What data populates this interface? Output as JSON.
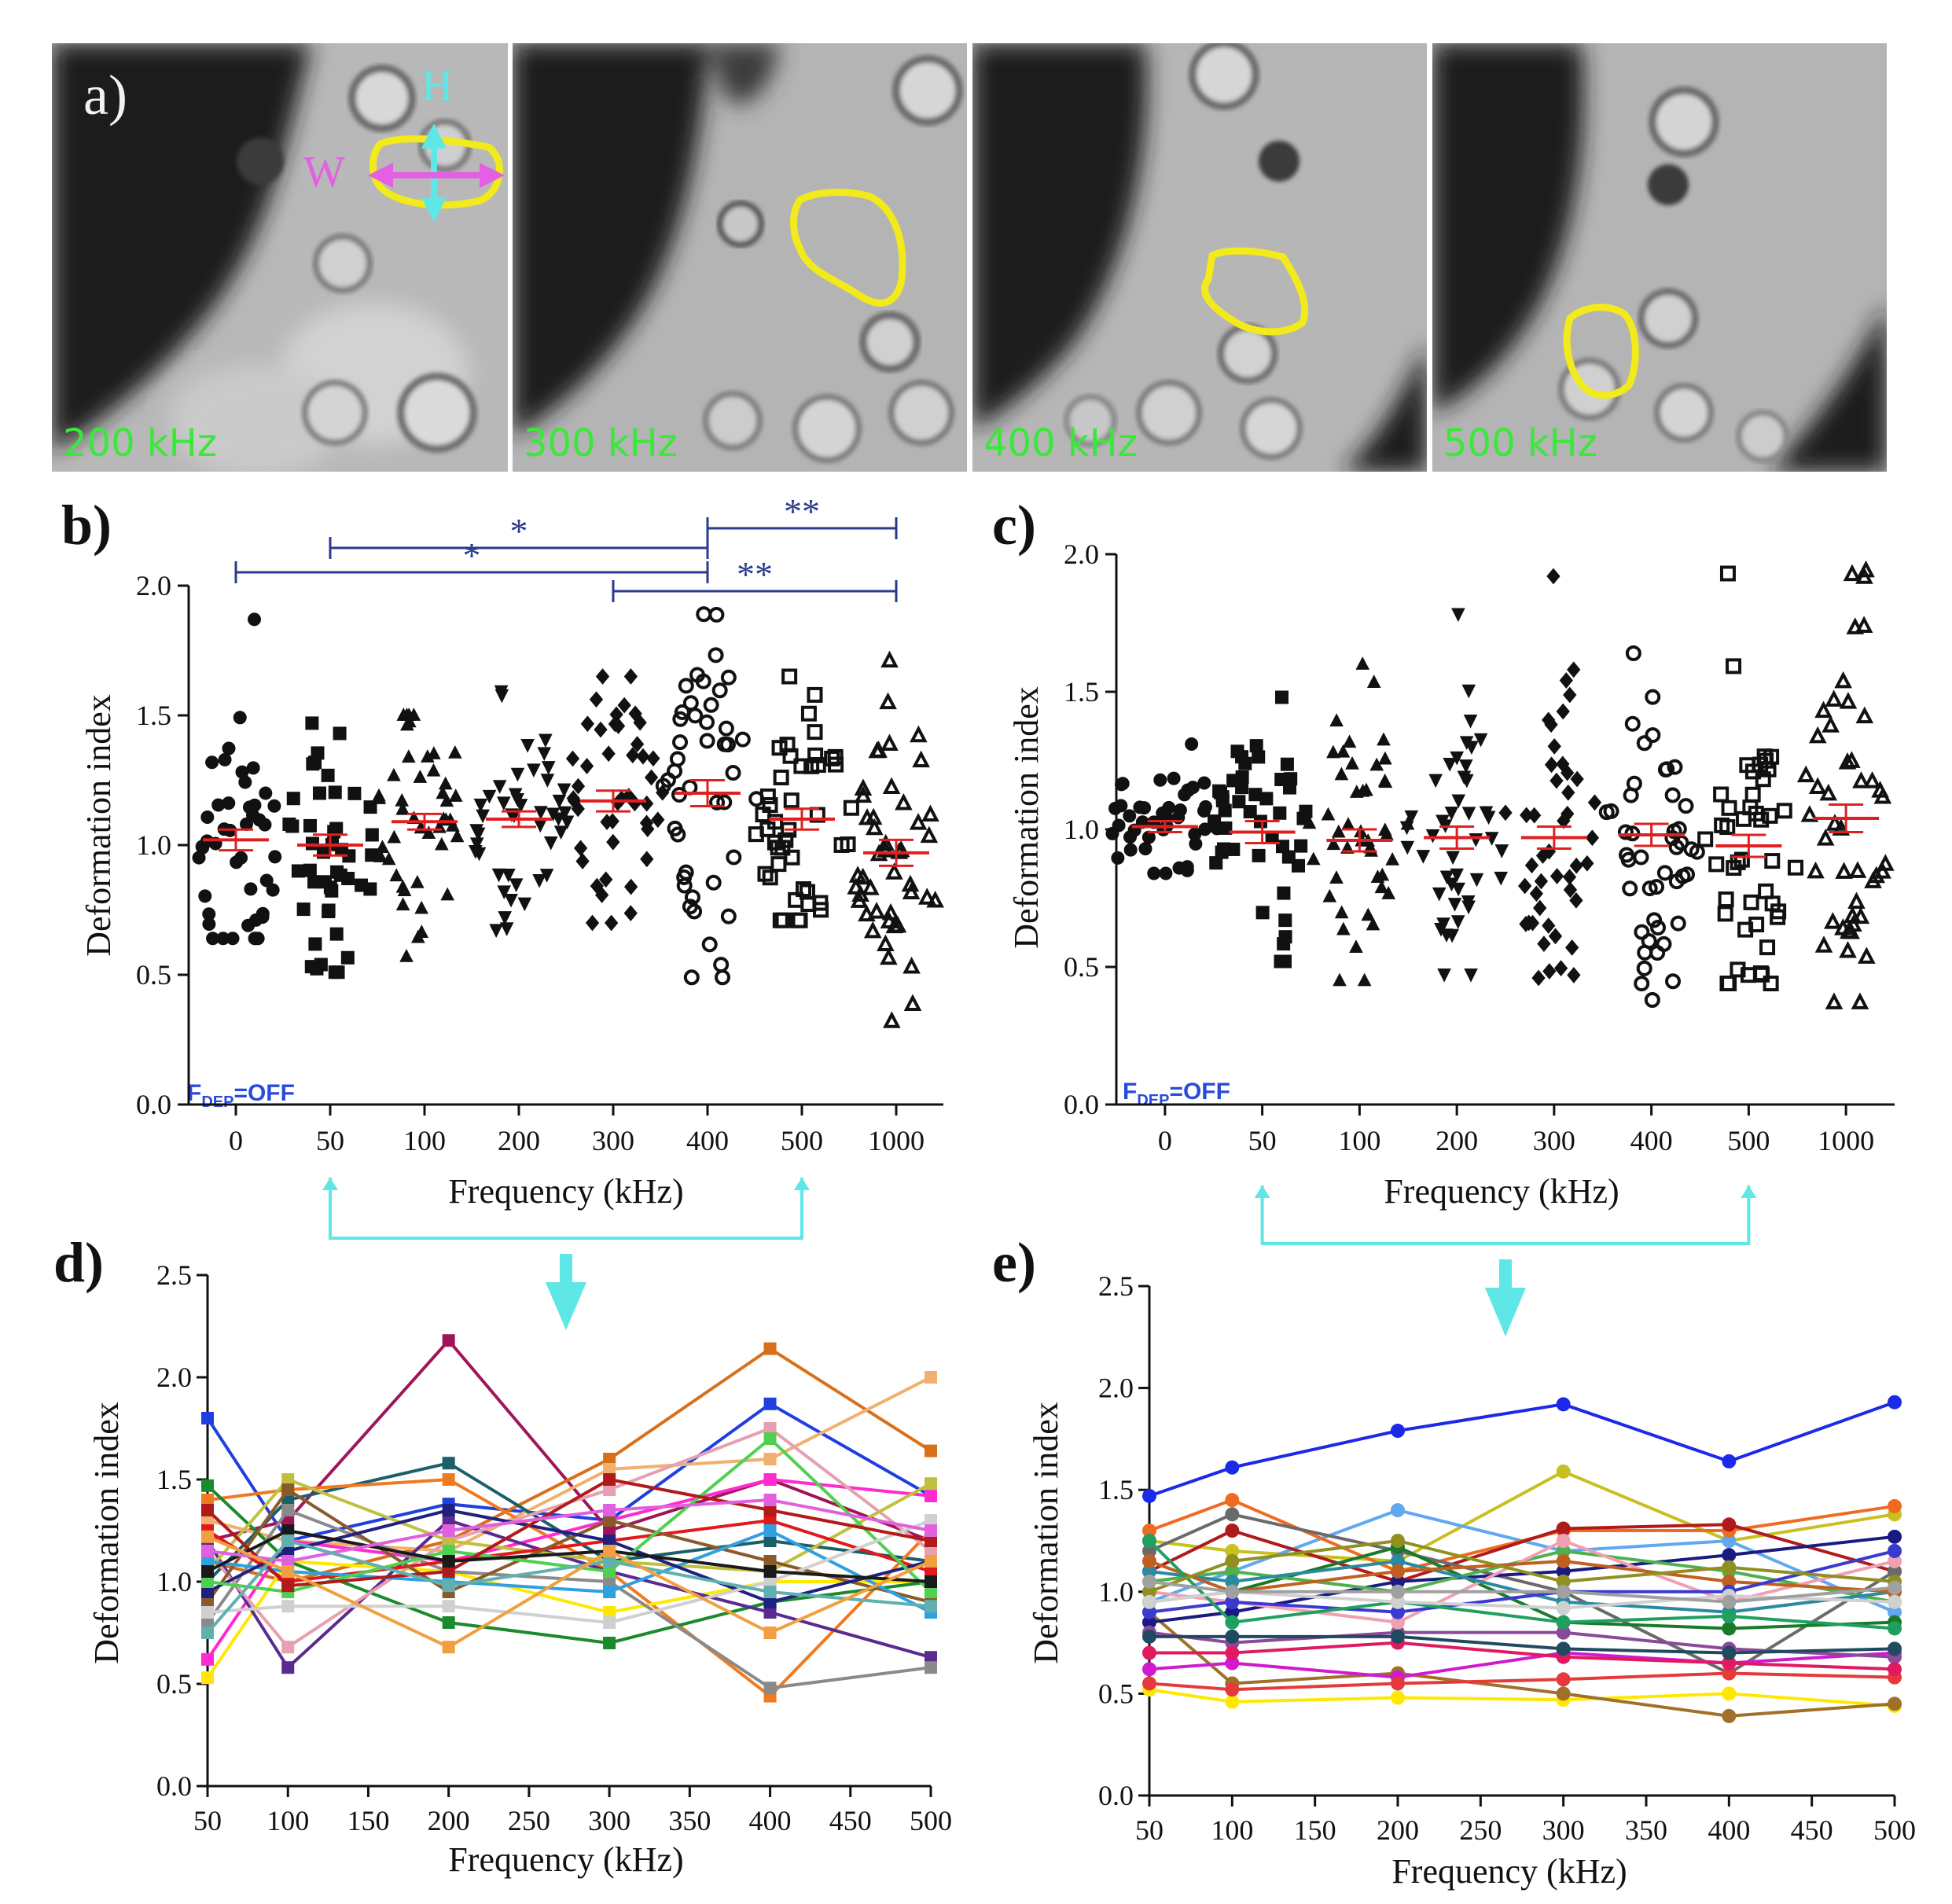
{
  "panel_a": {
    "letter": "a)",
    "labels": {
      "height": "H",
      "width": "W"
    },
    "images": [
      {
        "freq": "200 kHz"
      },
      {
        "freq": "300 kHz"
      },
      {
        "freq": "400 kHz"
      },
      {
        "freq": "500 kHz"
      }
    ],
    "colors": {
      "outline": "#f2ea1a",
      "height_arrow": "#5fe6e6",
      "width_arrow": "#e45fe4",
      "label": "#39e939"
    }
  },
  "chart_data": [
    {
      "id": "b",
      "panel": "b)",
      "type": "scatter",
      "categories": [
        "0",
        "50",
        "100",
        "200",
        "300",
        "400",
        "500",
        "1000"
      ],
      "xlabel": "Frequency (kHz)",
      "ylabel": "Deformation index",
      "ylim": [
        0,
        2.0
      ],
      "yticks": [
        "0.0",
        "0.5",
        "1.0",
        "1.5",
        "2.0"
      ],
      "markers": [
        "circle",
        "square",
        "triangle",
        "triangle-down",
        "diamond",
        "circle-open",
        "square-open",
        "triangle-open"
      ],
      "means": [
        1.02,
        1.0,
        1.09,
        1.1,
        1.17,
        1.2,
        1.1,
        0.97
      ],
      "sem": [
        0.04,
        0.04,
        0.03,
        0.03,
        0.04,
        0.05,
        0.04,
        0.05
      ],
      "ranges": [
        [
          0.64,
          1.87
        ],
        [
          0.51,
          1.47
        ],
        [
          0.57,
          1.5
        ],
        [
          0.67,
          1.59
        ],
        [
          0.7,
          1.65
        ],
        [
          0.49,
          1.89
        ],
        [
          0.71,
          1.65
        ],
        [
          0.32,
          1.71
        ]
      ],
      "n_points": 45,
      "annotation": "FDEP=OFF",
      "significance": [
        {
          "from": "0",
          "to": "400",
          "label": "*"
        },
        {
          "from": "50",
          "to": "400",
          "label": "*"
        },
        {
          "from": "300",
          "to": "1000",
          "label": "**"
        },
        {
          "from": "400",
          "to": "1000",
          "label": "**"
        }
      ]
    },
    {
      "id": "c",
      "panel": "c)",
      "type": "scatter",
      "categories": [
        "0",
        "50",
        "100",
        "200",
        "300",
        "400",
        "500",
        "1000"
      ],
      "xlabel": "Frequency (kHz)",
      "ylabel": "Deformation index",
      "ylim": [
        0,
        2.0
      ],
      "yticks": [
        "0.0",
        "0.5",
        "1.0",
        "1.5",
        "2.0"
      ],
      "markers": [
        "circle",
        "square",
        "triangle",
        "triangle-down",
        "diamond",
        "circle-open",
        "square-open",
        "triangle-open"
      ],
      "means": [
        1.01,
        0.99,
        0.96,
        0.97,
        0.97,
        0.98,
        0.94,
        1.04
      ],
      "sem": [
        0.02,
        0.04,
        0.04,
        0.04,
        0.04,
        0.04,
        0.04,
        0.05
      ],
      "ranges": [
        [
          0.84,
          1.31
        ],
        [
          0.52,
          1.48
        ],
        [
          0.45,
          1.6
        ],
        [
          0.47,
          1.78
        ],
        [
          0.46,
          1.92
        ],
        [
          0.38,
          1.64
        ],
        [
          0.44,
          1.93
        ],
        [
          0.37,
          1.94
        ]
      ],
      "n_points": 45,
      "annotation": "FDEP=OFF",
      "significance": []
    },
    {
      "id": "d",
      "panel": "d)",
      "type": "line",
      "x": [
        50,
        100,
        200,
        300,
        400,
        500
      ],
      "xticks": [
        "50",
        "100",
        "150",
        "200",
        "250",
        "300",
        "350",
        "400",
        "450",
        "500"
      ],
      "yticks": [
        "0.0",
        "0.5",
        "1.0",
        "1.5",
        "2.0",
        "2.5"
      ],
      "xlabel": "Frequency (kHz)",
      "ylabel": "Deformation index",
      "xlim": [
        50,
        500
      ],
      "ylim": [
        0,
        2.5
      ],
      "marker": "square",
      "series": [
        {
          "color": "#1f3fe0",
          "values": [
            1.8,
            1.2,
            1.38,
            1.3,
            1.87,
            1.42
          ]
        },
        {
          "color": "#a0155a",
          "values": [
            1.2,
            1.3,
            2.18,
            1.25,
            1.5,
            1.2
          ]
        },
        {
          "color": "#d8701a",
          "values": [
            1.1,
            1.0,
            1.2,
            1.6,
            2.14,
            1.64
          ]
        },
        {
          "color": "#f0b070",
          "values": [
            1.3,
            1.2,
            1.15,
            1.55,
            1.6,
            2.0
          ]
        },
        {
          "color": "#1a5f6a",
          "values": [
            1.0,
            1.4,
            1.58,
            1.1,
            1.2,
            1.1
          ]
        },
        {
          "color": "#f07a20",
          "values": [
            1.4,
            1.45,
            1.5,
            1.05,
            0.44,
            1.25
          ]
        },
        {
          "color": "#ffe800",
          "values": [
            0.53,
            1.1,
            1.05,
            0.85,
            1.0,
            1.0
          ]
        },
        {
          "color": "#ff2ad0",
          "values": [
            0.62,
            1.2,
            1.1,
            1.3,
            1.5,
            1.42
          ]
        },
        {
          "color": "#1a8a2a",
          "values": [
            1.47,
            1.1,
            0.8,
            0.7,
            0.9,
            1.0
          ]
        },
        {
          "color": "#5a2a90",
          "values": [
            1.2,
            0.58,
            1.3,
            1.05,
            0.85,
            0.63
          ]
        },
        {
          "color": "#8a8a8a",
          "values": [
            0.8,
            1.35,
            1.05,
            1.0,
            0.48,
            0.58
          ]
        },
        {
          "color": "#e6a0b0",
          "values": [
            1.15,
            0.68,
            1.2,
            1.45,
            1.75,
            1.15
          ]
        },
        {
          "color": "#c0c040",
          "values": [
            1.05,
            1.5,
            1.2,
            1.1,
            1.05,
            1.48
          ]
        },
        {
          "color": "#e01a1a",
          "values": [
            1.25,
            1.0,
            1.1,
            1.2,
            1.3,
            1.05
          ]
        },
        {
          "color": "#8a5a2a",
          "values": [
            0.9,
            1.45,
            0.95,
            1.3,
            1.1,
            0.9
          ]
        },
        {
          "color": "#30a0e0",
          "values": [
            1.1,
            1.05,
            1.0,
            0.95,
            1.25,
            0.85
          ]
        },
        {
          "color": "#202080",
          "values": [
            0.95,
            1.15,
            1.35,
            1.2,
            0.9,
            1.1
          ]
        },
        {
          "color": "#50d050",
          "values": [
            1.0,
            0.95,
            1.15,
            1.05,
            1.7,
            0.95
          ]
        },
        {
          "color": "#d0d0d0",
          "values": [
            0.85,
            0.88,
            0.88,
            0.8,
            1.0,
            1.3
          ]
        },
        {
          "color": "#b01a1a",
          "values": [
            1.35,
            0.98,
            1.05,
            1.5,
            1.35,
            1.2
          ]
        },
        {
          "color": "#1a1a1a",
          "values": [
            1.05,
            1.25,
            1.1,
            1.15,
            1.05,
            1.0
          ]
        },
        {
          "color": "#e060e0",
          "values": [
            1.15,
            1.1,
            1.25,
            1.35,
            1.4,
            1.25
          ]
        },
        {
          "color": "#60b0b0",
          "values": [
            0.75,
            1.2,
            0.98,
            1.1,
            0.95,
            0.88
          ]
        },
        {
          "color": "#f0a040",
          "values": [
            1.22,
            1.05,
            0.68,
            1.15,
            0.75,
            1.1
          ]
        }
      ]
    },
    {
      "id": "e",
      "panel": "e)",
      "type": "line",
      "x": [
        50,
        100,
        200,
        300,
        400,
        500
      ],
      "xticks": [
        "50",
        "100",
        "150",
        "200",
        "250",
        "300",
        "350",
        "400",
        "450",
        "500"
      ],
      "yticks": [
        "0.0",
        "0.5",
        "1.0",
        "1.5",
        "2.0",
        "2.5"
      ],
      "xlabel": "Frequency (kHz)",
      "ylabel": "Deformation index",
      "xlim": [
        50,
        500
      ],
      "ylim": [
        0,
        2.5
      ],
      "marker": "circle",
      "series": [
        {
          "color": "#1a2ae8",
          "values": [
            1.47,
            1.61,
            1.79,
            1.92,
            1.64,
            1.93
          ]
        },
        {
          "color": "#c8c020",
          "values": [
            1.25,
            1.2,
            1.15,
            1.59,
            1.25,
            1.38
          ]
        },
        {
          "color": "#60a8f0",
          "values": [
            0.95,
            1.1,
            1.4,
            1.2,
            1.25,
            0.9
          ]
        },
        {
          "color": "#f06a20",
          "values": [
            1.3,
            1.45,
            1.1,
            1.3,
            1.3,
            1.42
          ]
        },
        {
          "color": "#b01a1a",
          "values": [
            1.1,
            1.3,
            1.05,
            1.31,
            1.33,
            1.1
          ]
        },
        {
          "color": "#6a6a6a",
          "values": [
            1.2,
            1.38,
            1.2,
            1.0,
            0.6,
            1.1
          ]
        },
        {
          "color": "#ffe800",
          "values": [
            0.52,
            0.46,
            0.48,
            0.47,
            0.5,
            0.44
          ]
        },
        {
          "color": "#a0702a",
          "values": [
            0.9,
            0.55,
            0.6,
            0.5,
            0.39,
            0.45
          ]
        },
        {
          "color": "#d01ad0",
          "values": [
            0.62,
            0.65,
            0.58,
            0.7,
            0.65,
            0.7
          ]
        },
        {
          "color": "#1a7a2a",
          "values": [
            0.95,
            1.0,
            1.22,
            0.85,
            0.82,
            0.85
          ]
        },
        {
          "color": "#1a1a80",
          "values": [
            0.85,
            0.9,
            1.05,
            1.1,
            1.18,
            1.27
          ]
        },
        {
          "color": "#e63a3a",
          "values": [
            0.55,
            0.52,
            0.55,
            0.57,
            0.6,
            0.58
          ]
        },
        {
          "color": "#50b050",
          "values": [
            1.05,
            1.1,
            1.0,
            1.2,
            1.1,
            0.95
          ]
        },
        {
          "color": "#8a4a9a",
          "values": [
            0.8,
            0.75,
            0.8,
            0.8,
            0.72,
            0.68
          ]
        },
        {
          "color": "#f0a0b0",
          "values": [
            1.0,
            0.95,
            0.85,
            1.25,
            0.95,
            1.15
          ]
        },
        {
          "color": "#2a8aa0",
          "values": [
            1.1,
            1.05,
            1.15,
            0.95,
            0.9,
            1.0
          ]
        },
        {
          "color": "#c06020",
          "values": [
            1.15,
            1.0,
            1.1,
            1.15,
            1.05,
            1.0
          ]
        },
        {
          "color": "#3a3ad0",
          "values": [
            0.9,
            0.95,
            0.9,
            1.0,
            1.0,
            1.2
          ]
        },
        {
          "color": "#20a060",
          "values": [
            1.25,
            0.85,
            0.95,
            0.85,
            0.88,
            0.82
          ]
        },
        {
          "color": "#e01a60",
          "values": [
            0.7,
            0.7,
            0.75,
            0.68,
            0.65,
            0.62
          ]
        },
        {
          "color": "#909020",
          "values": [
            1.0,
            1.15,
            1.25,
            1.05,
            1.12,
            1.05
          ]
        },
        {
          "color": "#d0d0d0",
          "values": [
            0.95,
            1.0,
            0.95,
            0.92,
            0.98,
            0.95
          ]
        },
        {
          "color": "#204a60",
          "values": [
            0.78,
            0.78,
            0.78,
            0.72,
            0.7,
            0.72
          ]
        },
        {
          "color": "#a0a0a0",
          "values": [
            1.05,
            1.0,
            1.0,
            1.0,
            0.95,
            1.02
          ]
        }
      ]
    }
  ],
  "connectors": {
    "color": "#5fe6e6",
    "left": {
      "from": "50",
      "to": "500"
    },
    "right": {
      "from": "50",
      "to": "500"
    }
  }
}
